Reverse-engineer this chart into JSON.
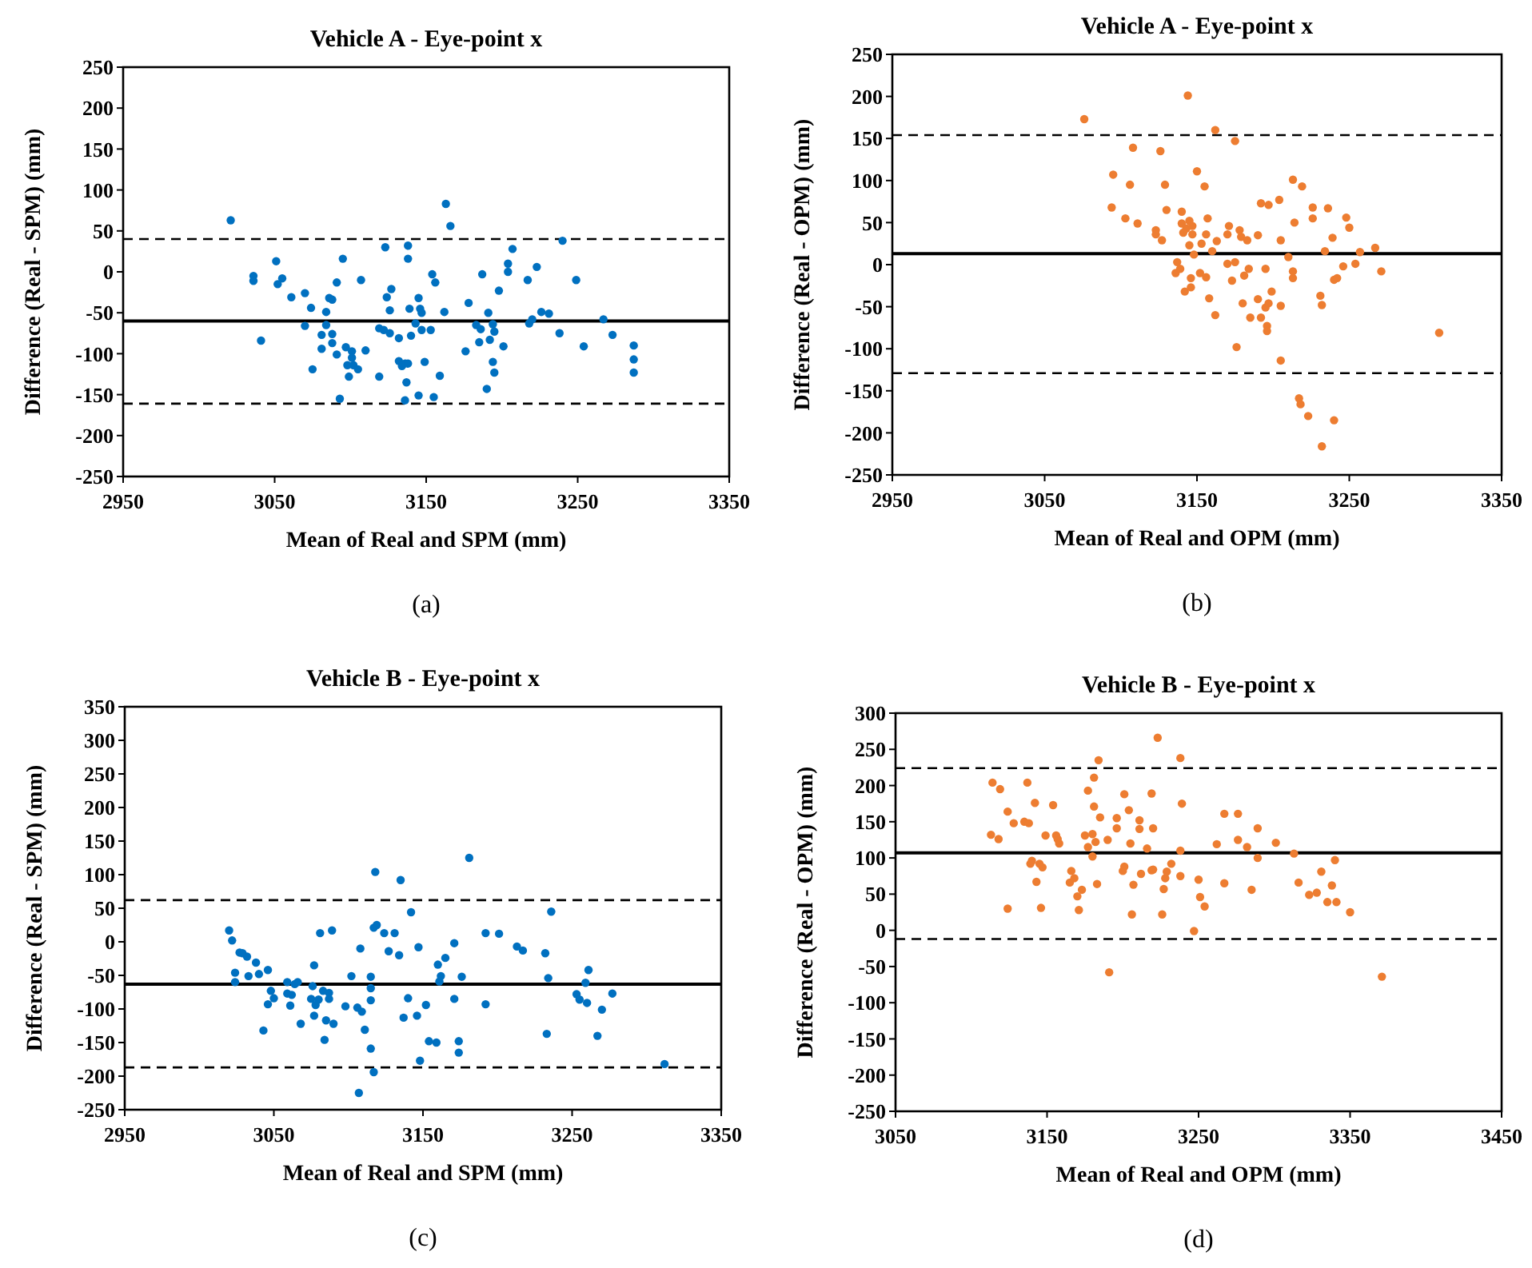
{
  "chart_data": [
    {
      "type": "scatter",
      "title": "Vehicle A - Eye-point x",
      "xlabel": "Mean of Real and SPM (mm)",
      "ylabel": "Difference (Real - SPM) (mm)",
      "annotations": [
        "(a)"
      ],
      "xlim": [
        2950,
        3350
      ],
      "xticks": [
        2950,
        3050,
        3150,
        3250,
        3350
      ],
      "ylim": [
        -250,
        250
      ],
      "yticks": [
        -250,
        -200,
        -150,
        -100,
        -50,
        0,
        50,
        100,
        150,
        200,
        250
      ],
      "grid": false,
      "marker": "circle",
      "ref_lines": [
        {
          "axis": "y",
          "value": 40,
          "line_style": "dashed"
        },
        {
          "axis": "y",
          "value": -60,
          "line_style": "solid"
        },
        {
          "axis": "y",
          "value": -161,
          "line_style": "dashed"
        }
      ],
      "series": [
        {
          "color": "#0070c0",
          "x": [
            3021,
            3036,
            3036,
            3041,
            3051,
            3052,
            3055,
            3061,
            3070,
            3070,
            3074,
            3075,
            3081,
            3081,
            3084,
            3084,
            3086,
            3088,
            3088,
            3088,
            3091,
            3091,
            3093,
            3095,
            3097,
            3098,
            3099,
            3101,
            3102,
            3101,
            3105,
            3107,
            3110,
            3119,
            3119,
            3122,
            3123,
            3124,
            3126,
            3126,
            3127,
            3132,
            3132,
            3134,
            3136,
            3138,
            3136,
            3137,
            3138,
            3138,
            3139,
            3140,
            3143,
            3145,
            3145,
            3146,
            3147,
            3147,
            3149,
            3153,
            3154,
            3155,
            3156,
            3159,
            3162,
            3163,
            3166,
            3176,
            3178,
            3183,
            3185,
            3186,
            3187,
            3190,
            3191,
            3192,
            3194,
            3194,
            3195,
            3195,
            3198,
            3201,
            3204,
            3204,
            3207,
            3217,
            3218,
            3220,
            3223,
            3226,
            3231,
            3238,
            3240,
            3249,
            3254,
            3267,
            3273,
            3287,
            3287,
            3287
          ],
          "values": [
            63,
            -5,
            -11,
            -84,
            13,
            -15,
            -8,
            -31,
            -26,
            -66,
            -44,
            -119,
            -77,
            -94,
            -65,
            -49,
            -32,
            -34,
            -76,
            -87,
            -13,
            -101,
            -155,
            16,
            -92,
            -114,
            -128,
            -97,
            -114,
            -105,
            -119,
            -10,
            -96,
            -128,
            -69,
            -71,
            30,
            -31,
            -47,
            -75,
            -21,
            -81,
            -109,
            -115,
            -112,
            -112,
            -157,
            -135,
            32,
            16,
            -45,
            -78,
            -63,
            -32,
            -151,
            -45,
            -50,
            -71,
            -110,
            -71,
            -3,
            -153,
            -13,
            -127,
            -49,
            83,
            56,
            -97,
            -38,
            -65,
            -86,
            -70,
            -3,
            -143,
            -50,
            -83,
            -110,
            -64,
            -123,
            -73,
            -23,
            -91,
            10,
            0,
            28,
            -10,
            -63,
            -58,
            6,
            -49,
            -51,
            -75,
            38,
            -10,
            -91,
            -58,
            -77,
            -90,
            -107,
            -123
          ]
        }
      ]
    },
    {
      "type": "scatter",
      "title": "Vehicle A - Eye-point x",
      "xlabel": "Mean of Real and OPM (mm)",
      "ylabel": "Difference (Real - OPM) (mm)",
      "annotations": [
        "(b)"
      ],
      "xlim": [
        2950,
        3350
      ],
      "xticks": [
        2950,
        3050,
        3150,
        3250,
        3350
      ],
      "ylim": [
        -250,
        250
      ],
      "yticks": [
        -250,
        -200,
        -150,
        -100,
        -50,
        0,
        50,
        100,
        150,
        200,
        250
      ],
      "grid": false,
      "marker": "circle",
      "ref_lines": [
        {
          "axis": "y",
          "value": 154,
          "line_style": "dashed"
        },
        {
          "axis": "y",
          "value": 13,
          "line_style": "solid"
        },
        {
          "axis": "y",
          "value": -129,
          "line_style": "dashed"
        }
      ],
      "series": [
        {
          "color": "#ed7d31",
          "x": [
            3076,
            3095,
            3094,
            3103,
            3106,
            3108,
            3111,
            3123,
            3123,
            3126,
            3127,
            3129,
            3130,
            3137,
            3136,
            3139,
            3140,
            3140,
            3141,
            3142,
            3143,
            3144,
            3145,
            3145,
            3146,
            3146,
            3147,
            3147,
            3148,
            3150,
            3152,
            3153,
            3155,
            3156,
            3156,
            3157,
            3158,
            3160,
            3162,
            3162,
            3163,
            3170,
            3170,
            3171,
            3173,
            3175,
            3175,
            3176,
            3178,
            3179,
            3180,
            3181,
            3183,
            3184,
            3185,
            3190,
            3190,
            3192,
            3192,
            3195,
            3195,
            3196,
            3196,
            3197,
            3197,
            3199,
            3204,
            3205,
            3205,
            3205,
            3210,
            3213,
            3213,
            3213,
            3214,
            3217,
            3218,
            3219,
            3223,
            3226,
            3226,
            3231,
            3232,
            3232,
            3234,
            3236,
            3239,
            3240,
            3240,
            3242,
            3246,
            3248,
            3250,
            3254,
            3257,
            3267,
            3271,
            3309
          ],
          "values": [
            173,
            107,
            68,
            55,
            95,
            139,
            49,
            41,
            36,
            135,
            29,
            95,
            65,
            3,
            -10,
            -5,
            63,
            49,
            38,
            -32,
            43,
            201,
            23,
            52,
            -16,
            -27,
            46,
            36,
            12,
            111,
            -10,
            25,
            93,
            -15,
            36,
            55,
            -40,
            16,
            160,
            -60,
            28,
            36,
            1,
            46,
            -19,
            147,
            3,
            -98,
            41,
            33,
            -46,
            -13,
            29,
            -5,
            -63,
            35,
            -41,
            73,
            -63,
            -5,
            -51,
            -73,
            -79,
            71,
            -46,
            -32,
            77,
            29,
            -49,
            -114,
            9,
            101,
            -8,
            -16,
            50,
            -159,
            -166,
            93,
            -180,
            68,
            55,
            -37,
            -48,
            -216,
            16,
            67,
            32,
            -18,
            -185,
            -16,
            -2,
            56,
            44,
            1,
            15,
            20,
            -8,
            -81
          ]
        }
      ]
    },
    {
      "type": "scatter",
      "title": "Vehicle B - Eye-point x",
      "xlabel": "Mean of Real and SPM (mm)",
      "ylabel": "Difference (Real - SPM) (mm)",
      "annotations": [
        "(c)"
      ],
      "xlim": [
        2950,
        3350
      ],
      "xticks": [
        2950,
        3050,
        3150,
        3250,
        3350
      ],
      "ylim": [
        -250,
        350
      ],
      "yticks": [
        -250,
        -200,
        -150,
        -100,
        -50,
        0,
        50,
        100,
        150,
        200,
        250,
        300,
        350
      ],
      "grid": false,
      "marker": "circle",
      "ref_lines": [
        {
          "axis": "y",
          "value": 62,
          "line_style": "dashed"
        },
        {
          "axis": "y",
          "value": -63,
          "line_style": "solid"
        },
        {
          "axis": "y",
          "value": -187,
          "line_style": "dashed"
        }
      ],
      "series": [
        {
          "color": "#0070c0",
          "x": [
            3020,
            3022,
            3024,
            3024,
            3027,
            3029,
            3032,
            3033,
            3038,
            3040,
            3043,
            3046,
            3046,
            3048,
            3050,
            3059,
            3059,
            3061,
            3062,
            3064,
            3066,
            3068,
            3075,
            3076,
            3077,
            3077,
            3078,
            3080,
            3081,
            3083,
            3084,
            3085,
            3087,
            3087,
            3089,
            3090,
            3098,
            3102,
            3106,
            3107,
            3108,
            3109,
            3111,
            3115,
            3115,
            3115,
            3115,
            3117,
            3117,
            3118,
            3119,
            3124,
            3127,
            3131,
            3134,
            3135,
            3137,
            3140,
            3142,
            3146,
            3147,
            3148,
            3152,
            3154,
            3159,
            3160,
            3161,
            3162,
            3165,
            3171,
            3171,
            3174,
            3174,
            3176,
            3181,
            3192,
            3192,
            3201,
            3213,
            3217,
            3232,
            3233,
            3234,
            3236,
            3253,
            3255,
            3259,
            3260,
            3261,
            3267,
            3270,
            3277,
            3312
          ],
          "values": [
            17,
            2,
            -46,
            -60,
            -16,
            -17,
            -22,
            -51,
            -31,
            -48,
            -132,
            -42,
            -93,
            -73,
            -84,
            -60,
            -77,
            -95,
            -79,
            -63,
            -60,
            -122,
            -85,
            -66,
            -35,
            -110,
            -94,
            -86,
            13,
            -73,
            -146,
            -117,
            -76,
            -85,
            17,
            -122,
            -96,
            -51,
            -98,
            -225,
            -10,
            -104,
            -131,
            -69,
            -52,
            -87,
            -159,
            21,
            -194,
            104,
            25,
            13,
            -14,
            13,
            -20,
            92,
            -113,
            -84,
            44,
            -110,
            -8,
            -177,
            -94,
            -148,
            -150,
            -34,
            -59,
            -51,
            -24,
            -2,
            -85,
            -148,
            -165,
            -52,
            125,
            -93,
            13,
            12,
            -7,
            -13,
            -17,
            -137,
            -54,
            45,
            -78,
            -86,
            -61,
            -91,
            -42,
            -140,
            -101,
            -77,
            -182
          ]
        }
      ]
    },
    {
      "type": "scatter",
      "title": "Vehicle B - Eye-point x",
      "xlabel": "Mean of Real and OPM (mm)",
      "ylabel": "Difference (Real - OPM) (mm)",
      "annotations": [
        "(d)"
      ],
      "xlim": [
        3050,
        3450
      ],
      "xticks": [
        3050,
        3150,
        3250,
        3350,
        3450
      ],
      "ylim": [
        -250,
        300
      ],
      "yticks": [
        -250,
        -200,
        -150,
        -100,
        -50,
        0,
        50,
        100,
        150,
        200,
        250,
        300
      ],
      "grid": false,
      "marker": "circle",
      "ref_lines": [
        {
          "axis": "y",
          "value": 224,
          "line_style": "dashed"
        },
        {
          "axis": "y",
          "value": 107,
          "line_style": "solid"
        },
        {
          "axis": "y",
          "value": -12,
          "line_style": "dashed"
        }
      ],
      "series": [
        {
          "color": "#ed7d31",
          "x": [
            3113,
            3114,
            3118,
            3119,
            3124,
            3124,
            3128,
            3135,
            3137,
            3138,
            3139,
            3140,
            3142,
            3143,
            3145,
            3146,
            3147,
            3149,
            3154,
            3156,
            3157,
            3158,
            3165,
            3166,
            3168,
            3170,
            3171,
            3173,
            3175,
            3177,
            3177,
            3180,
            3180,
            3181,
            3181,
            3182,
            3183,
            3184,
            3185,
            3190,
            3191,
            3196,
            3196,
            3201,
            3200,
            3201,
            3204,
            3205,
            3206,
            3207,
            3211,
            3211,
            3212,
            3216,
            3219,
            3219,
            3220,
            3220,
            3223,
            3226,
            3227,
            3228,
            3229,
            3232,
            3238,
            3238,
            3238,
            3239,
            3247,
            3250,
            3251,
            3254,
            3262,
            3267,
            3267,
            3276,
            3276,
            3282,
            3285,
            3289,
            3289,
            3301,
            3313,
            3316,
            3323,
            3328,
            3331,
            3335,
            3338,
            3340,
            3341,
            3350,
            3371
          ],
          "values": [
            132,
            204,
            126,
            195,
            164,
            30,
            148,
            150,
            204,
            148,
            92,
            96,
            176,
            67,
            92,
            31,
            87,
            131,
            173,
            131,
            126,
            120,
            66,
            82,
            72,
            47,
            28,
            56,
            131,
            115,
            193,
            133,
            102,
            171,
            211,
            122,
            64,
            235,
            156,
            125,
            -58,
            141,
            155,
            188,
            82,
            88,
            166,
            120,
            22,
            63,
            152,
            140,
            78,
            113,
            83,
            189,
            141,
            84,
            266,
            22,
            57,
            72,
            81,
            92,
            110,
            238,
            75,
            175,
            -1,
            70,
            46,
            33,
            119,
            161,
            65,
            161,
            125,
            115,
            56,
            141,
            100,
            121,
            106,
            66,
            49,
            52,
            81,
            39,
            62,
            97,
            39,
            25,
            -64
          ]
        }
      ]
    }
  ]
}
